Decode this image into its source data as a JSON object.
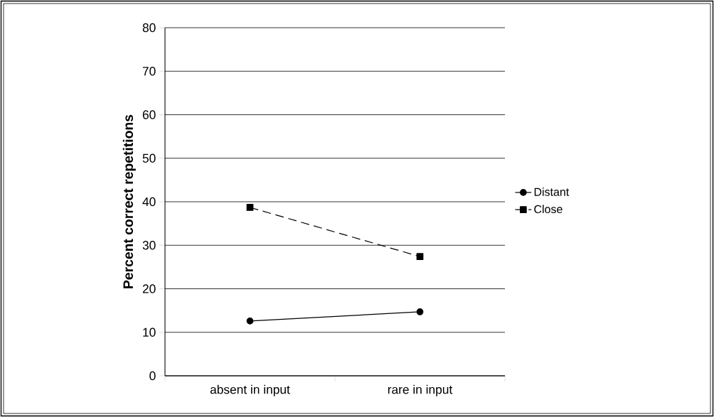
{
  "chart_data": {
    "type": "line",
    "ylabel": "Percent correct repetitions",
    "categories": [
      "absent in input",
      "rare in input"
    ],
    "series": [
      {
        "name": "Distant",
        "color": "#000000",
        "values": [
          12.6,
          14.7
        ],
        "marker": "circle",
        "line_style": "solid"
      },
      {
        "name": "Close",
        "color": "#000000",
        "values": [
          38.7,
          27.4
        ],
        "marker": "square",
        "line_style": "dashed"
      }
    ],
    "ylim": [
      0,
      80
    ],
    "yticks": [
      0,
      10,
      20,
      30,
      40,
      50,
      60,
      70,
      80
    ],
    "grid": "y",
    "legend": "right"
  }
}
